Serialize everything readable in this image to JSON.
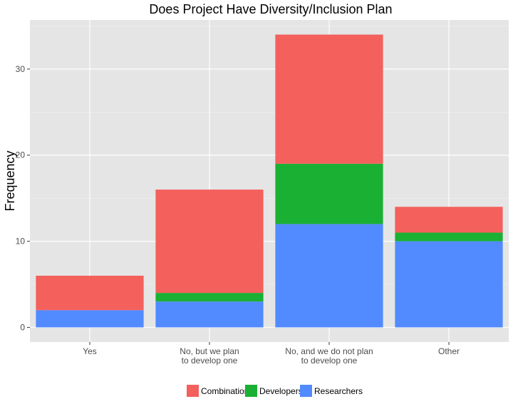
{
  "chart_data": {
    "type": "bar",
    "stacked": true,
    "title": "Does Project Have Diversity/Inclusion Plan",
    "xlabel": "",
    "ylabel": "Frequency",
    "categories": [
      [
        "Yes"
      ],
      [
        "No, but we plan",
        "to develop one"
      ],
      [
        "No, and we do not plan",
        "to develop one"
      ],
      [
        "Other"
      ]
    ],
    "series": [
      {
        "name": "Researchers",
        "color": "#528bff",
        "values": [
          2,
          3,
          12,
          10
        ]
      },
      {
        "name": "Developers",
        "color": "#1ab033",
        "values": [
          0,
          1,
          7,
          1
        ]
      },
      {
        "name": "Combination",
        "color": "#f4605c",
        "values": [
          4,
          12,
          15,
          3
        ]
      }
    ],
    "legend_order": [
      "Combination",
      "Developers",
      "Researchers"
    ],
    "legend_position": "bottom",
    "yticks": [
      0,
      10,
      20,
      30
    ],
    "ylim": [
      -1.7,
      35.7
    ],
    "grid": true
  }
}
